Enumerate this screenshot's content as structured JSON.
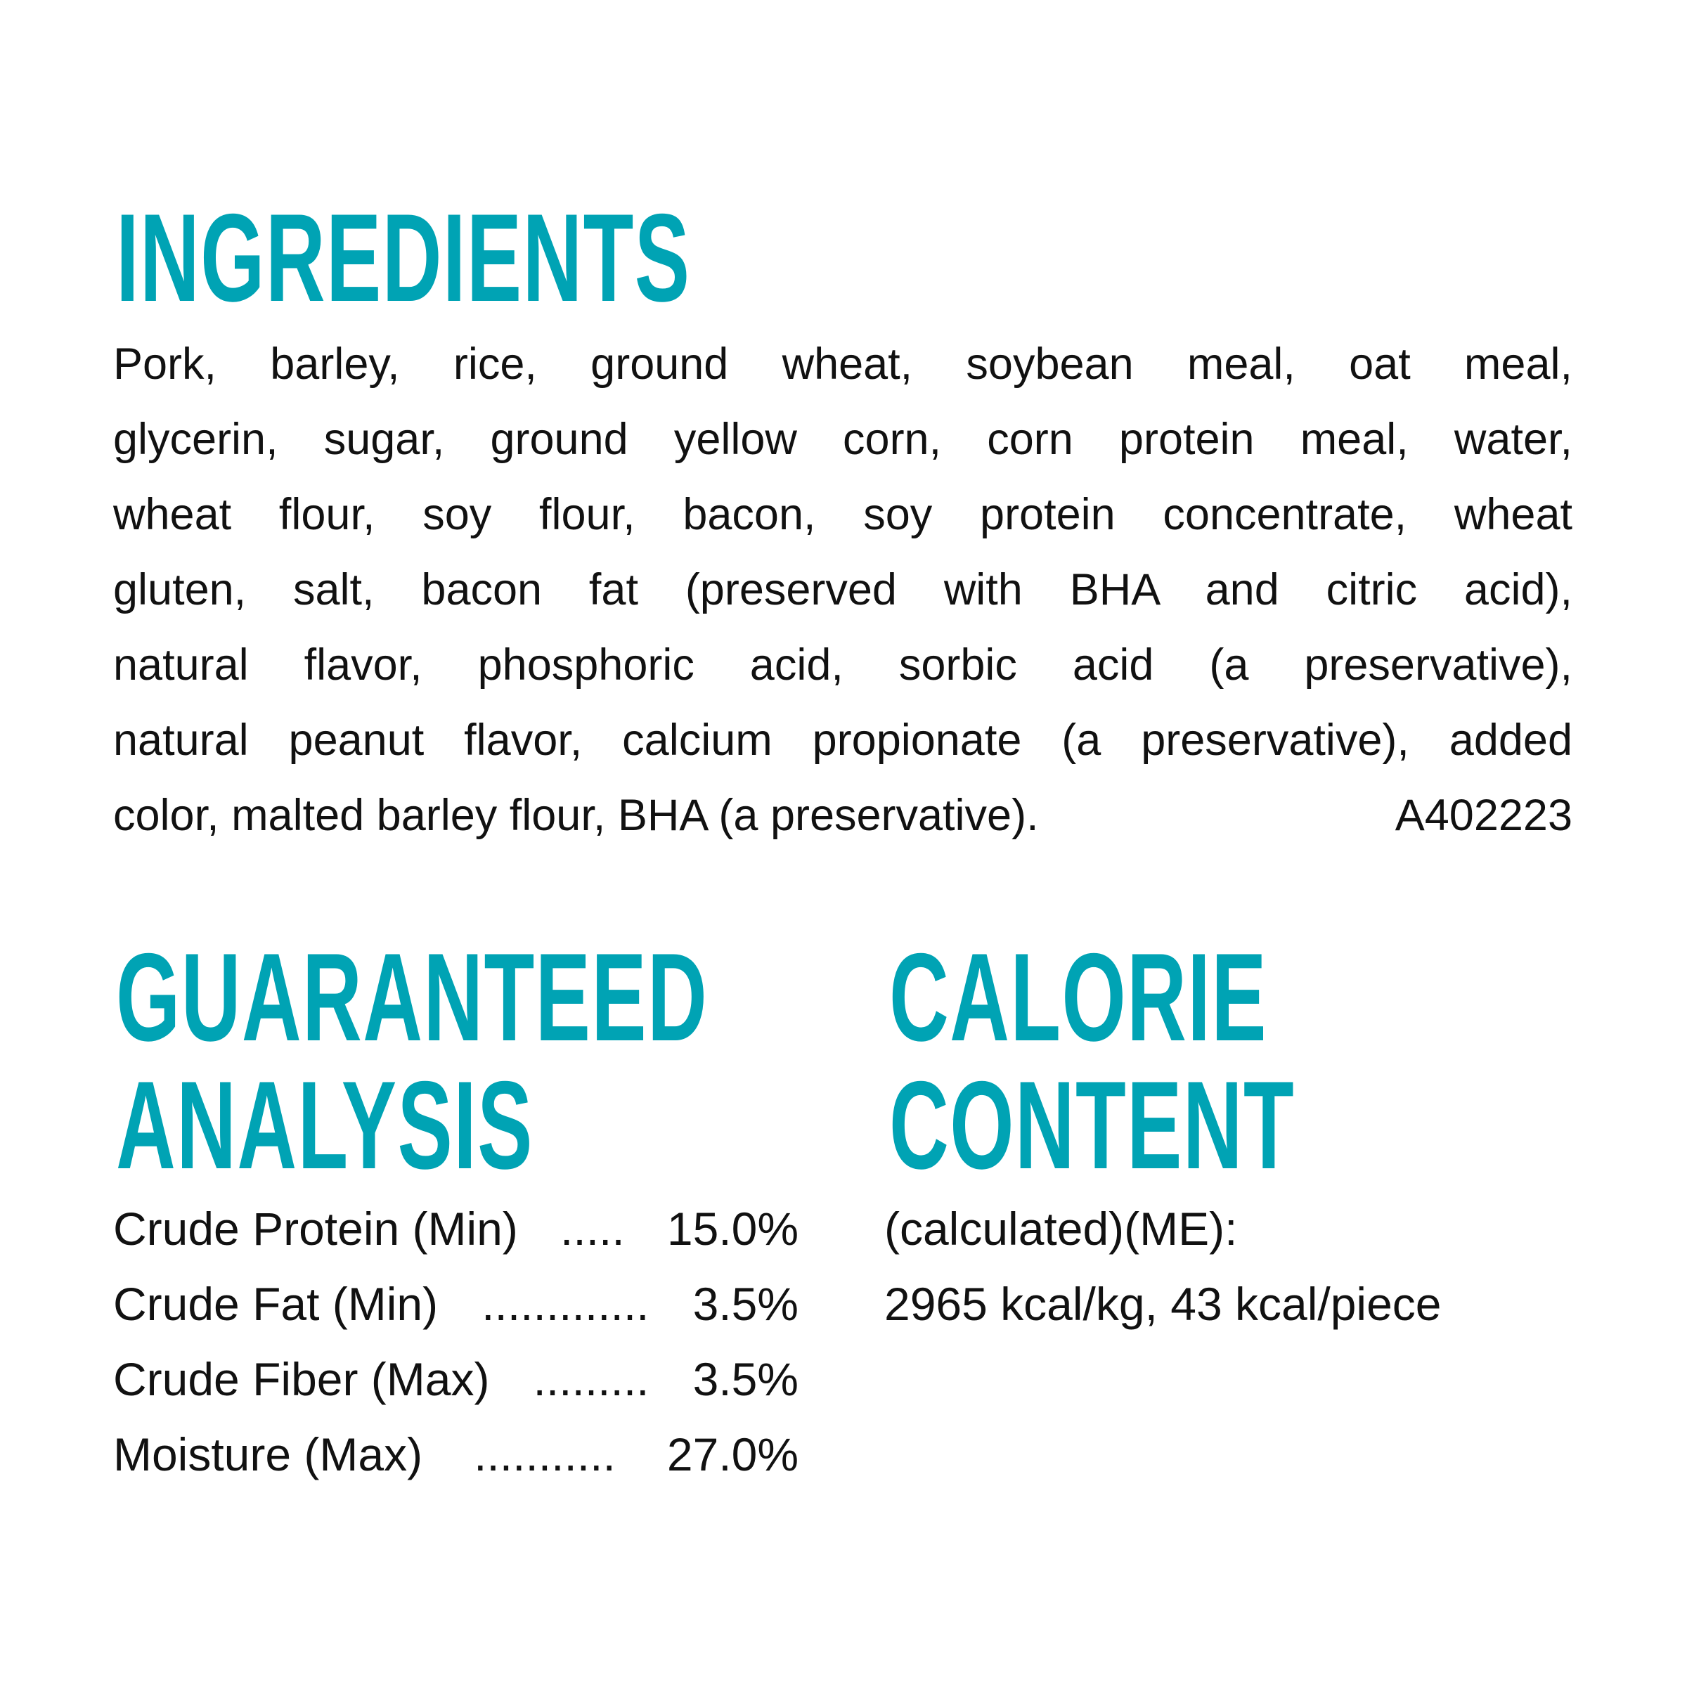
{
  "colors": {
    "heading": "#00A3B4",
    "text": "#111111"
  },
  "ingredients": {
    "heading": "INGREDIENTS",
    "lines": [
      "Pork, barley, rice, ground wheat, soybean meal, oat meal,",
      "glycerin, sugar, ground yellow corn, corn protein meal, water,",
      "wheat flour, soy flour, bacon, soy protein concentrate, wheat",
      "gluten, salt, bacon fat (preserved with BHA and citric acid),",
      "natural flavor, phosphoric acid, sorbic acid (a preservative),",
      "natural peanut flavor, calcium propionate (a preservative), added",
      "color, malted barley flour, BHA (a preservative)."
    ],
    "code": "A402223"
  },
  "guaranteed_analysis": {
    "heading_line1": "GUARANTEED",
    "heading_line2": "ANALYSIS",
    "rows": [
      {
        "label": "Crude Protein (Min)",
        "dots": ".....",
        "value": "15.0%"
      },
      {
        "label": "Crude Fat (Min)",
        "dots": ".............",
        "value": "3.5%"
      },
      {
        "label": "Crude Fiber (Max)",
        "dots": ".........",
        "value": "3.5%"
      },
      {
        "label": "Moisture (Max)",
        "dots": "...........",
        "value": "27.0%"
      }
    ]
  },
  "calorie_content": {
    "heading_line1": "CALORIE",
    "heading_line2": "CONTENT",
    "line1": "(calculated)(ME):",
    "line2": "2965 kcal/kg, 43 kcal/piece"
  }
}
